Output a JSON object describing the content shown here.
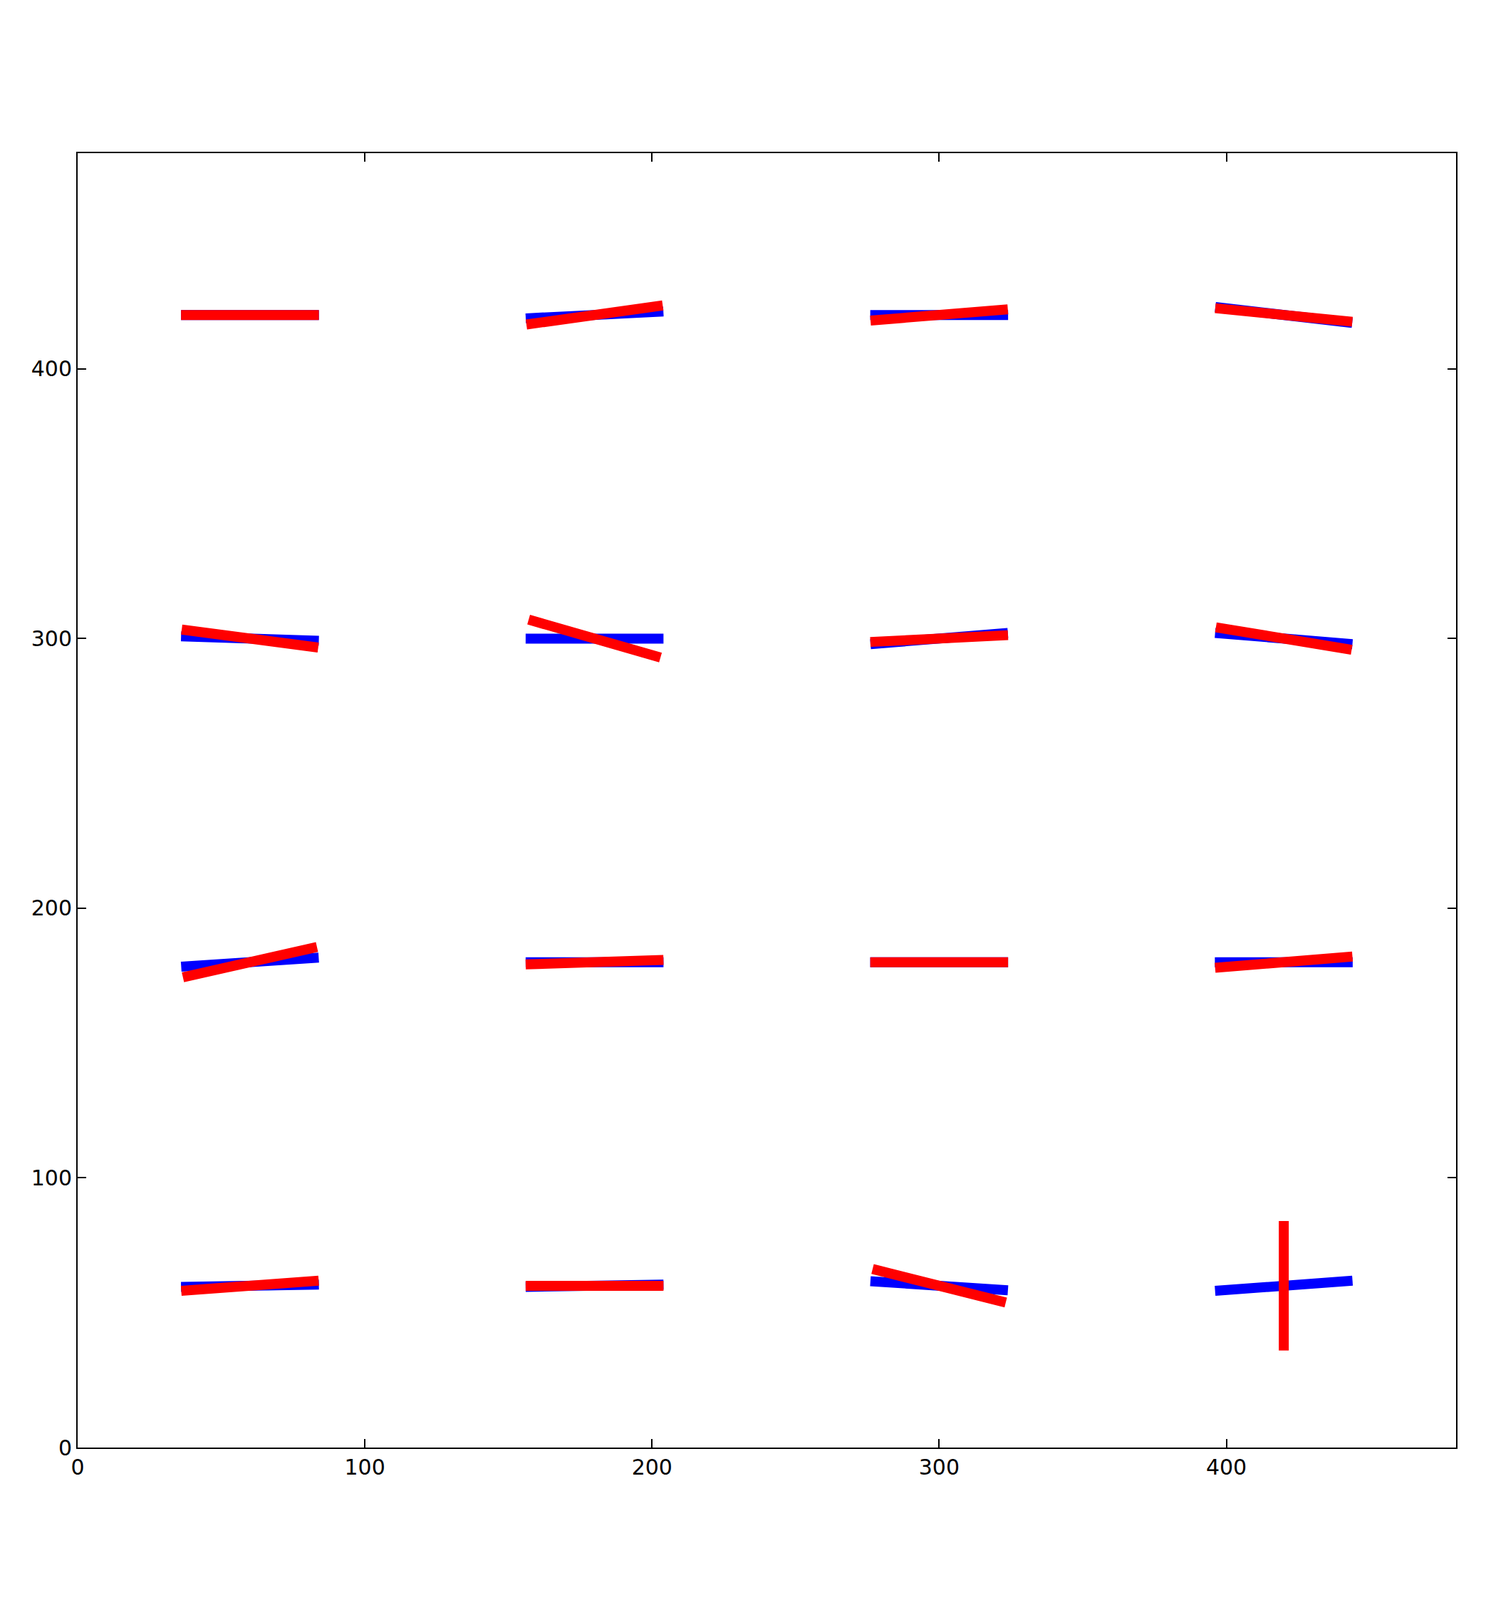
{
  "chart_data": {
    "type": "vector",
    "xlim": [
      0,
      480
    ],
    "ylim": [
      0,
      480
    ],
    "xticks": [
      0,
      100,
      200,
      300,
      400
    ],
    "yticks": [
      0,
      100,
      200,
      300,
      400
    ],
    "grid": false,
    "series": [
      {
        "color": "#0000ff",
        "values": [
          {
            "x": 60,
            "y": 420,
            "angle": 0,
            "length": 48
          },
          {
            "x": 180,
            "y": 420,
            "angle": 3,
            "length": 48
          },
          {
            "x": 300,
            "y": 420,
            "angle": 0,
            "length": 48
          },
          {
            "x": 420,
            "y": 420,
            "angle": -7,
            "length": 48
          },
          {
            "x": 60,
            "y": 300,
            "angle": -2,
            "length": 48
          },
          {
            "x": 180,
            "y": 300,
            "angle": 0,
            "length": 48
          },
          {
            "x": 300,
            "y": 300,
            "angle": 5,
            "length": 48
          },
          {
            "x": 420,
            "y": 300,
            "angle": -5,
            "length": 48
          },
          {
            "x": 60,
            "y": 180,
            "angle": 4,
            "length": 48
          },
          {
            "x": 180,
            "y": 180,
            "angle": 0,
            "length": 48
          },
          {
            "x": 300,
            "y": 180,
            "angle": 0,
            "length": 48
          },
          {
            "x": 420,
            "y": 180,
            "angle": 0,
            "length": 48
          },
          {
            "x": 60,
            "y": 60,
            "angle": 1,
            "length": 48
          },
          {
            "x": 180,
            "y": 60,
            "angle": 1,
            "length": 48
          },
          {
            "x": 300,
            "y": 60,
            "angle": -4,
            "length": 48
          },
          {
            "x": 420,
            "y": 60,
            "angle": 4.5,
            "length": 48
          }
        ]
      },
      {
        "color": "#ff0000",
        "values": [
          {
            "x": 60,
            "y": 420,
            "angle": 0,
            "length": 48
          },
          {
            "x": 180,
            "y": 420,
            "angle": 8.5,
            "length": 48
          },
          {
            "x": 300,
            "y": 420,
            "angle": 5,
            "length": 48
          },
          {
            "x": 420,
            "y": 420,
            "angle": -6,
            "length": 48
          },
          {
            "x": 60,
            "y": 300,
            "angle": -8,
            "length": 48
          },
          {
            "x": 180,
            "y": 300,
            "angle": -17,
            "length": 48
          },
          {
            "x": 300,
            "y": 300,
            "angle": 3,
            "length": 48
          },
          {
            "x": 420,
            "y": 300,
            "angle": -10,
            "length": 48
          },
          {
            "x": 60,
            "y": 180,
            "angle": 13.5,
            "length": 48
          },
          {
            "x": 180,
            "y": 180,
            "angle": 2,
            "length": 48
          },
          {
            "x": 300,
            "y": 180,
            "angle": 0,
            "length": 48
          },
          {
            "x": 420,
            "y": 180,
            "angle": 5,
            "length": 48
          },
          {
            "x": 60,
            "y": 60,
            "angle": 4.5,
            "length": 48
          },
          {
            "x": 180,
            "y": 60,
            "angle": 0,
            "length": 48
          },
          {
            "x": 300,
            "y": 60,
            "angle": -15,
            "length": 48
          },
          {
            "x": 420,
            "y": 60,
            "angle": 90,
            "length": 48
          }
        ]
      }
    ]
  }
}
